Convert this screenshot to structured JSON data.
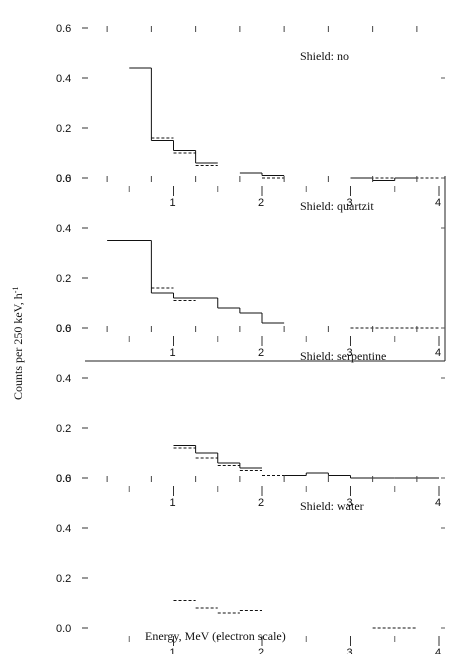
{
  "chart_data": {
    "type": "line",
    "layout": "stacked-panels",
    "xlabel": "Energy, MeV (electron scale)",
    "ylabel": "Counts per 250 keV, h",
    "ylabel_superscript": "-1",
    "xlim": [
      0,
      4.3
    ],
    "x_ticks": [
      1,
      2,
      3,
      4
    ],
    "x_tick_labels": [
      "1",
      "2",
      "3",
      "4"
    ],
    "y_ticks": [
      0.0,
      0.2,
      0.4,
      0.6
    ],
    "y_tick_labels": [
      "0.0",
      "0.2",
      "0.4",
      "0.6"
    ],
    "ylim": [
      -0.05,
      0.6
    ],
    "grid": false,
    "panels": [
      {
        "label": "Shield: no",
        "series": [
          {
            "style": "solid",
            "bins": [
              [
                0.5,
                0.75,
                0.44
              ],
              [
                0.75,
                1.0,
                0.15
              ],
              [
                1.0,
                1.25,
                0.11
              ],
              [
                1.25,
                1.5,
                0.06
              ],
              [
                1.75,
                2.0,
                0.02
              ],
              [
                2.0,
                2.25,
                0.01
              ],
              [
                3.0,
                3.25,
                0.0
              ],
              [
                3.25,
                3.5,
                -0.01
              ],
              [
                3.5,
                3.75,
                0.0
              ]
            ]
          },
          {
            "style": "dashed",
            "bins": [
              [
                0.75,
                1.0,
                0.16
              ],
              [
                1.0,
                1.25,
                0.1
              ],
              [
                1.25,
                1.5,
                0.05
              ],
              [
                2.0,
                2.25,
                0.0
              ],
              [
                3.0,
                4.0,
                0.0
              ]
            ]
          }
        ]
      },
      {
        "label": "Shield: quartzit",
        "series": [
          {
            "style": "solid",
            "bins": [
              [
                0.25,
                0.75,
                0.35
              ],
              [
                0.75,
                1.0,
                0.14
              ],
              [
                1.0,
                1.5,
                0.12
              ],
              [
                1.5,
                1.75,
                0.08
              ],
              [
                1.75,
                2.0,
                0.06
              ],
              [
                2.0,
                2.25,
                0.02
              ]
            ]
          },
          {
            "style": "dashed",
            "bins": [
              [
                0.75,
                1.0,
                0.16
              ],
              [
                1.0,
                1.25,
                0.11
              ],
              [
                1.75,
                2.0,
                0.06
              ],
              [
                3.0,
                4.0,
                0.0
              ]
            ]
          }
        ]
      },
      {
        "label": "Shield: serpentine",
        "series": [
          {
            "style": "solid",
            "bins": [
              [
                1.0,
                1.25,
                0.13
              ],
              [
                1.25,
                1.5,
                0.1
              ],
              [
                1.5,
                1.75,
                0.06
              ],
              [
                1.75,
                2.0,
                0.04
              ],
              [
                2.25,
                2.5,
                0.01
              ],
              [
                2.5,
                2.75,
                0.02
              ],
              [
                2.75,
                3.0,
                0.01
              ],
              [
                3.0,
                3.5,
                0.0
              ],
              [
                3.5,
                4.0,
                0.0
              ]
            ]
          },
          {
            "style": "dashed",
            "bins": [
              [
                1.0,
                1.25,
                0.12
              ],
              [
                1.25,
                1.5,
                0.08
              ],
              [
                1.5,
                1.75,
                0.05
              ],
              [
                1.75,
                2.0,
                0.03
              ],
              [
                2.0,
                2.25,
                0.01
              ],
              [
                3.0,
                3.5,
                0.0
              ]
            ]
          }
        ]
      },
      {
        "label": "Shield: water",
        "series": [
          {
            "style": "dashed",
            "bins": [
              [
                1.0,
                1.25,
                0.11
              ],
              [
                1.25,
                1.5,
                0.08
              ],
              [
                1.5,
                1.75,
                0.06
              ],
              [
                1.75,
                2.0,
                0.07
              ],
              [
                3.25,
                3.75,
                0.0
              ]
            ]
          }
        ]
      }
    ]
  }
}
